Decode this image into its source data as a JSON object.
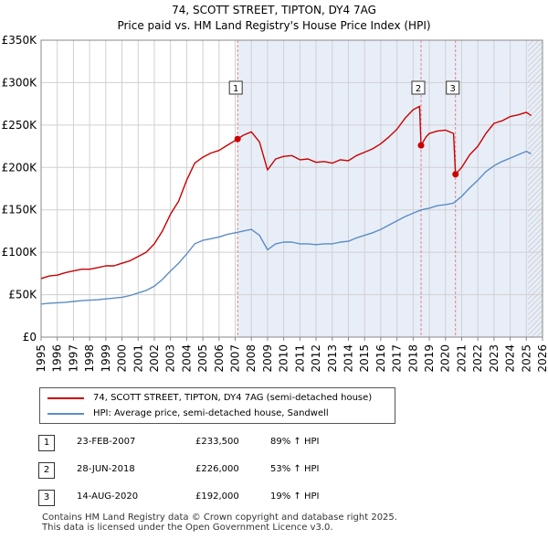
{
  "chart_data": {
    "type": "line",
    "title": "74, SCOTT STREET, TIPTON, DY4 7AG",
    "subtitle": "Price paid vs. HM Land Registry's House Price Index (HPI)",
    "xlim": [
      1995,
      2026
    ],
    "ylim": [
      0,
      350000
    ],
    "x_ticks": [
      "1995",
      "1996",
      "1997",
      "1998",
      "1999",
      "2000",
      "2001",
      "2002",
      "2003",
      "2004",
      "2005",
      "2006",
      "2007",
      "2008",
      "2009",
      "2010",
      "2011",
      "2012",
      "2013",
      "2014",
      "2015",
      "2016",
      "2017",
      "2018",
      "2019",
      "2020",
      "2021",
      "2022",
      "2023",
      "2024",
      "2025",
      "2026"
    ],
    "y_ticks": [
      {
        "value": 0,
        "label": "£0"
      },
      {
        "value": 50000,
        "label": "£50K"
      },
      {
        "value": 100000,
        "label": "£100K"
      },
      {
        "value": 150000,
        "label": "£150K"
      },
      {
        "value": 200000,
        "label": "£200K"
      },
      {
        "value": 250000,
        "label": "£250K"
      },
      {
        "value": 300000,
        "label": "£300K"
      },
      {
        "value": 350000,
        "label": "£350K"
      }
    ],
    "grid": true,
    "projected_from": 2025.1,
    "colors": {
      "property": "#cc0000",
      "hpi": "#5b8cc6",
      "shade": "#e8eef8",
      "grid": "#d0d0d0",
      "vline": "#e08080"
    },
    "series": [
      {
        "name": "74, SCOTT STREET, TIPTON, DY4 7AG (semi-detached house)",
        "color": "#cc0000",
        "points": [
          [
            1995.0,
            69000
          ],
          [
            1995.5,
            72000
          ],
          [
            1996.0,
            73000
          ],
          [
            1996.5,
            76000
          ],
          [
            1997.0,
            78000
          ],
          [
            1997.5,
            80000
          ],
          [
            1998.0,
            80000
          ],
          [
            1998.5,
            82000
          ],
          [
            1999.0,
            84000
          ],
          [
            1999.5,
            84000
          ],
          [
            2000.0,
            87000
          ],
          [
            2000.5,
            90000
          ],
          [
            2001.0,
            95000
          ],
          [
            2001.5,
            100000
          ],
          [
            2002.0,
            110000
          ],
          [
            2002.5,
            125000
          ],
          [
            2003.0,
            145000
          ],
          [
            2003.5,
            160000
          ],
          [
            2004.0,
            185000
          ],
          [
            2004.5,
            205000
          ],
          [
            2005.0,
            212000
          ],
          [
            2005.5,
            217000
          ],
          [
            2006.0,
            220000
          ],
          [
            2006.5,
            226000
          ],
          [
            2007.15,
            233500
          ],
          [
            2007.5,
            238000
          ],
          [
            2008.0,
            242000
          ],
          [
            2008.5,
            230000
          ],
          [
            2009.0,
            197000
          ],
          [
            2009.5,
            210000
          ],
          [
            2010.0,
            213000
          ],
          [
            2010.5,
            214000
          ],
          [
            2011.0,
            209000
          ],
          [
            2011.5,
            210000
          ],
          [
            2012.0,
            206000
          ],
          [
            2012.5,
            207000
          ],
          [
            2013.0,
            205000
          ],
          [
            2013.5,
            209000
          ],
          [
            2014.0,
            208000
          ],
          [
            2014.5,
            214000
          ],
          [
            2015.0,
            218000
          ],
          [
            2015.5,
            222000
          ],
          [
            2016.0,
            228000
          ],
          [
            2016.5,
            236000
          ],
          [
            2017.0,
            245000
          ],
          [
            2017.5,
            258000
          ],
          [
            2018.0,
            268000
          ],
          [
            2018.4,
            272000
          ],
          [
            2018.49,
            226000
          ],
          [
            2018.8,
            236000
          ],
          [
            2019.0,
            240000
          ],
          [
            2019.5,
            243000
          ],
          [
            2020.0,
            244000
          ],
          [
            2020.5,
            240000
          ],
          [
            2020.62,
            192000
          ],
          [
            2021.0,
            200000
          ],
          [
            2021.5,
            215000
          ],
          [
            2022.0,
            225000
          ],
          [
            2022.5,
            240000
          ],
          [
            2023.0,
            252000
          ],
          [
            2023.5,
            255000
          ],
          [
            2024.0,
            260000
          ],
          [
            2024.5,
            262000
          ],
          [
            2025.0,
            265000
          ],
          [
            2025.3,
            261000
          ]
        ]
      },
      {
        "name": "HPI: Average price, semi-detached house, Sandwell",
        "color": "#5b8cc6",
        "points": [
          [
            1995.0,
            39000
          ],
          [
            1995.5,
            40000
          ],
          [
            1996.0,
            40500
          ],
          [
            1996.5,
            41000
          ],
          [
            1997.0,
            42000
          ],
          [
            1997.5,
            43000
          ],
          [
            1998.0,
            43500
          ],
          [
            1998.5,
            44000
          ],
          [
            1999.0,
            45000
          ],
          [
            1999.5,
            46000
          ],
          [
            2000.0,
            47000
          ],
          [
            2000.5,
            49000
          ],
          [
            2001.0,
            52000
          ],
          [
            2001.5,
            55000
          ],
          [
            2002.0,
            60000
          ],
          [
            2002.5,
            68000
          ],
          [
            2003.0,
            78000
          ],
          [
            2003.5,
            87000
          ],
          [
            2004.0,
            98000
          ],
          [
            2004.5,
            110000
          ],
          [
            2005.0,
            114000
          ],
          [
            2005.5,
            116000
          ],
          [
            2006.0,
            118000
          ],
          [
            2006.5,
            121000
          ],
          [
            2007.0,
            123000
          ],
          [
            2007.5,
            125000
          ],
          [
            2008.0,
            127000
          ],
          [
            2008.5,
            120000
          ],
          [
            2009.0,
            103000
          ],
          [
            2009.5,
            110000
          ],
          [
            2010.0,
            112000
          ],
          [
            2010.5,
            112000
          ],
          [
            2011.0,
            110000
          ],
          [
            2011.5,
            110000
          ],
          [
            2012.0,
            109000
          ],
          [
            2012.5,
            110000
          ],
          [
            2013.0,
            110000
          ],
          [
            2013.5,
            112000
          ],
          [
            2014.0,
            113000
          ],
          [
            2014.5,
            117000
          ],
          [
            2015.0,
            120000
          ],
          [
            2015.5,
            123000
          ],
          [
            2016.0,
            127000
          ],
          [
            2016.5,
            132000
          ],
          [
            2017.0,
            137000
          ],
          [
            2017.5,
            142000
          ],
          [
            2018.0,
            146000
          ],
          [
            2018.5,
            150000
          ],
          [
            2019.0,
            152000
          ],
          [
            2019.5,
            155000
          ],
          [
            2020.0,
            156000
          ],
          [
            2020.5,
            158000
          ],
          [
            2021.0,
            166000
          ],
          [
            2021.5,
            176000
          ],
          [
            2022.0,
            185000
          ],
          [
            2022.5,
            195000
          ],
          [
            2023.0,
            202000
          ],
          [
            2023.5,
            207000
          ],
          [
            2024.0,
            211000
          ],
          [
            2024.5,
            215000
          ],
          [
            2025.0,
            219000
          ],
          [
            2025.3,
            216000
          ]
        ]
      }
    ],
    "markers": [
      {
        "id": "1",
        "x": 2007.15,
        "y": 233500
      },
      {
        "id": "2",
        "x": 2018.49,
        "y": 226000
      },
      {
        "id": "3",
        "x": 2020.62,
        "y": 192000
      }
    ]
  },
  "legend": {
    "property": "74, SCOTT STREET, TIPTON, DY4 7AG (semi-detached house)",
    "hpi": "HPI: Average price, semi-detached house, Sandwell"
  },
  "transactions": [
    {
      "num": "1",
      "date": "23-FEB-2007",
      "price": "£233,500",
      "hpi": "89% ↑ HPI"
    },
    {
      "num": "2",
      "date": "28-JUN-2018",
      "price": "£226,000",
      "hpi": "53% ↑ HPI"
    },
    {
      "num": "3",
      "date": "14-AUG-2020",
      "price": "£192,000",
      "hpi": "19% ↑ HPI"
    }
  ],
  "footer": {
    "line1": "Contains HM Land Registry data © Crown copyright and database right 2025.",
    "line2": "This data is licensed under the Open Government Licence v3.0."
  }
}
